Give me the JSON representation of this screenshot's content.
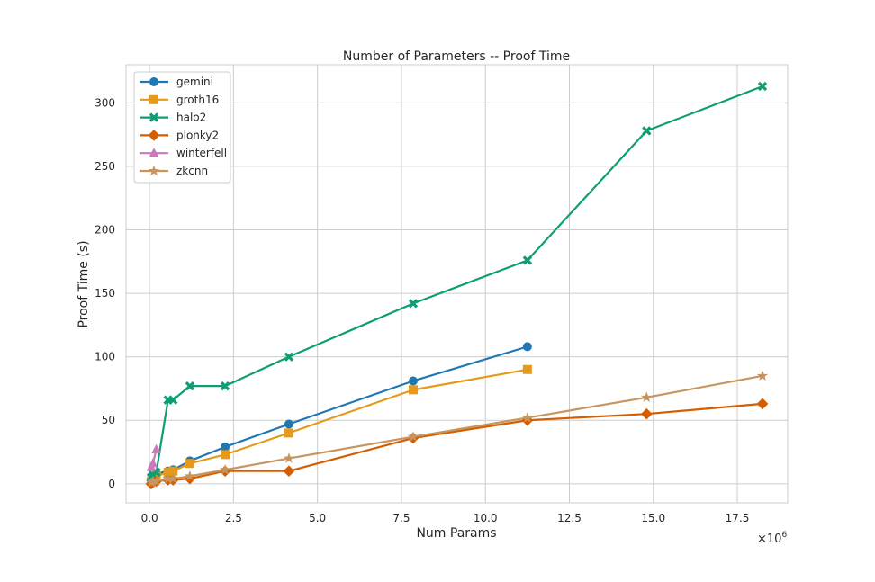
{
  "chart_data": {
    "type": "line",
    "title": "Number of Parameters -- Proof Time",
    "xlabel": "Num Params",
    "ylabel": "Proof Time (s)",
    "x_scale_label": "×10",
    "x_scale_exponent": "6",
    "xlim": [
      -0.7,
      19.0
    ],
    "ylim": [
      -15,
      330
    ],
    "xticks": [
      0.0,
      2.5,
      5.0,
      7.5,
      10.0,
      12.5,
      15.0,
      17.5
    ],
    "xtick_labels": [
      "0.0",
      "2.5",
      "5.0",
      "7.5",
      "10.0",
      "12.5",
      "15.0",
      "17.5"
    ],
    "yticks": [
      0,
      50,
      100,
      150,
      200,
      250,
      300
    ],
    "ytick_labels": [
      "0",
      "50",
      "100",
      "150",
      "200",
      "250",
      "300"
    ],
    "grid": true,
    "legend_position": "top-left",
    "series": [
      {
        "name": "gemini",
        "color": "#1f77b4",
        "marker": "circle",
        "x": [
          0.05,
          0.1,
          0.2,
          0.55,
          0.7,
          1.2,
          2.25,
          4.15,
          7.85,
          11.25
        ],
        "y": [
          3,
          6,
          8,
          10,
          11,
          18,
          29,
          47,
          81,
          108
        ]
      },
      {
        "name": "groth16",
        "color": "#e69a1a",
        "marker": "square",
        "x": [
          0.05,
          0.1,
          0.2,
          0.55,
          0.7,
          1.2,
          2.25,
          4.15,
          7.85,
          11.25
        ],
        "y": [
          2,
          4,
          6,
          9,
          10,
          16,
          23,
          40,
          74,
          90
        ]
      },
      {
        "name": "halo2",
        "color": "#0f9d74",
        "marker": "x",
        "x": [
          0.05,
          0.1,
          0.2,
          0.55,
          0.7,
          1.2,
          2.25,
          4.15,
          7.85,
          11.25,
          14.8,
          18.25
        ],
        "y": [
          5,
          7,
          9,
          66,
          66,
          77,
          77,
          100,
          142,
          176,
          278,
          313
        ]
      },
      {
        "name": "plonky2",
        "color": "#d55e00",
        "marker": "diamond",
        "x": [
          0.05,
          0.1,
          0.2,
          0.55,
          0.7,
          1.2,
          2.25,
          4.15,
          7.85,
          11.25,
          14.8,
          18.25
        ],
        "y": [
          0,
          1,
          2,
          3,
          3,
          4,
          10,
          10,
          36,
          50,
          55,
          63
        ]
      },
      {
        "name": "winterfell",
        "color": "#cc78bc",
        "marker": "triangle",
        "x": [
          0.05,
          0.1,
          0.2
        ],
        "y": [
          13,
          16,
          27
        ]
      },
      {
        "name": "zkcnn",
        "color": "#c8955f",
        "marker": "star",
        "x": [
          0.05,
          0.1,
          0.2,
          0.55,
          0.7,
          1.2,
          2.25,
          4.15,
          7.85,
          11.25,
          14.8,
          18.25
        ],
        "y": [
          1,
          2,
          2,
          4,
          4,
          6,
          11,
          20,
          37,
          52,
          68,
          85
        ]
      }
    ]
  }
}
